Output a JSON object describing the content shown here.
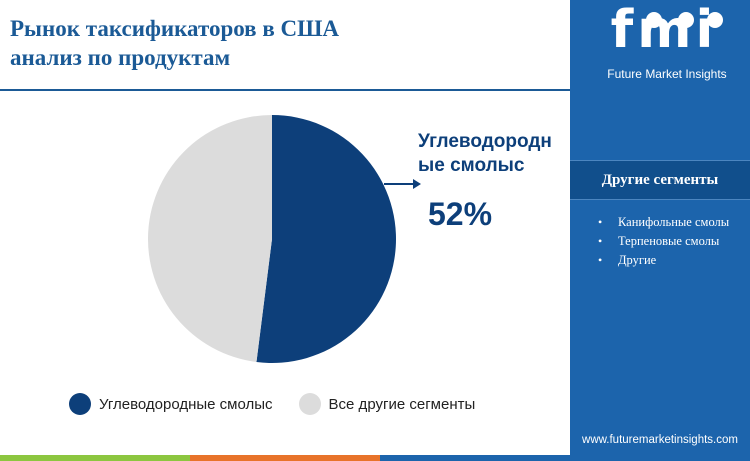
{
  "title": {
    "line1": "Рынок таксификаторов в США",
    "line2": "анализ по продуктам"
  },
  "chart_data": {
    "type": "pie",
    "categories": [
      "Углеводородные смолыс",
      "Все другие сегменты"
    ],
    "values": [
      52,
      48
    ],
    "colors": [
      "#0d3f7a",
      "#dcdcdc"
    ],
    "unit": "%",
    "callout": {
      "label": "Углеводородн ые смолыс",
      "value": "52%"
    },
    "legend": {
      "placement": "bottom",
      "entries": [
        "Углеводородные смолыс",
        "Все другие сегменты"
      ]
    }
  },
  "sidebar": {
    "logo": "fmi",
    "logo_subtitle": "Future Market Insights",
    "segments_title": "Другие сегменты",
    "segments": [
      "Канифольные смолы",
      "Терпеновые смолы",
      "Другие"
    ],
    "website": "www.futuremarketinsights.com",
    "background": "#1c64ac"
  },
  "bottom_bar_colors": [
    "#8cc63f",
    "#e8732a",
    "#1c64ac"
  ]
}
